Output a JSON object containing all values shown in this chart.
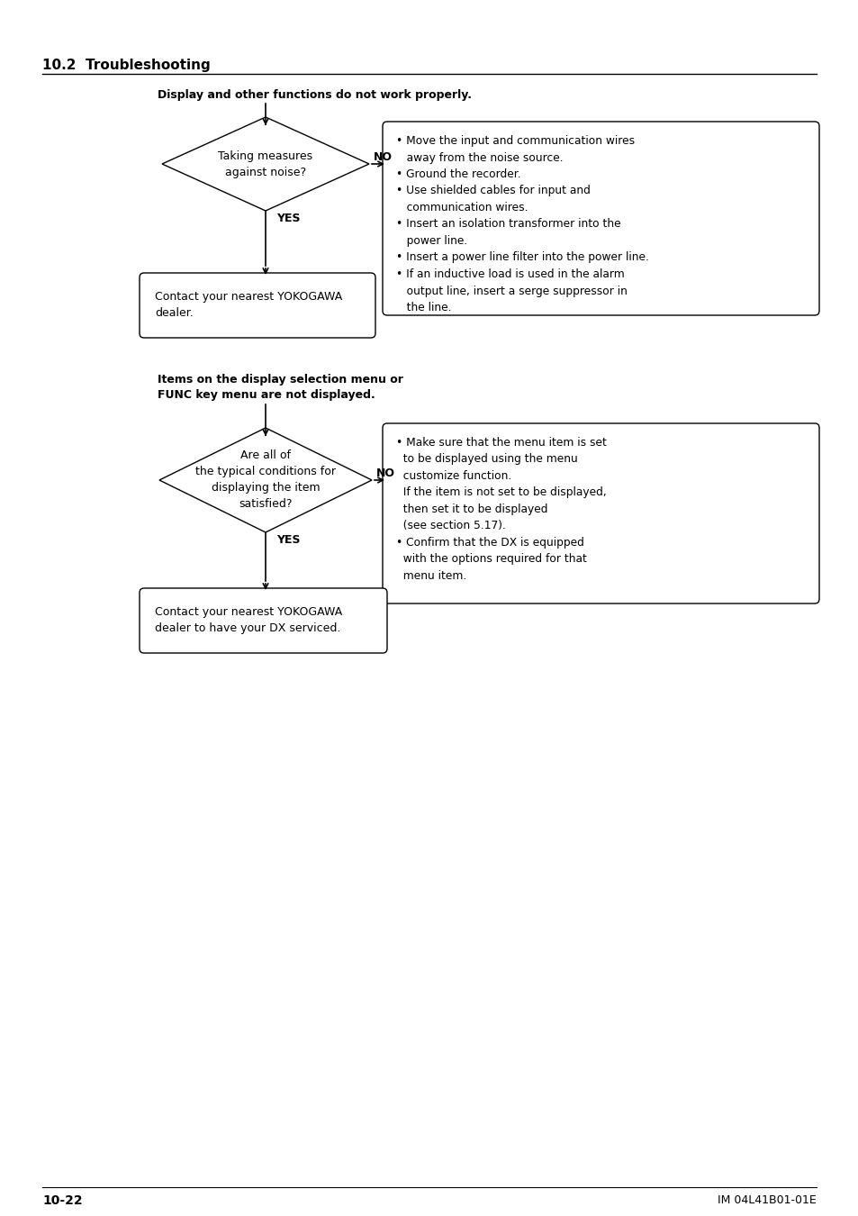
{
  "page_title": "10.2  Troubleshooting",
  "footer_left": "10-22",
  "footer_right": "IM 04L41B01-01E",
  "section1_title": "Display and other functions do not work properly.",
  "section2_title": "Items on the display selection menu or\nFUNC key menu are not displayed.",
  "diamond1_text": "Taking measures\nagainst noise?",
  "diamond1_yes": "YES",
  "diamond1_no": "NO",
  "box1_text": "Contact your nearest YOKOGAWA\ndealer.",
  "bullets1": "• Move the input and communication wires\n   away from the noise source.\n• Ground the recorder.\n• Use shielded cables for input and\n   communication wires.\n• Insert an isolation transformer into the\n   power line.\n• Insert a power line filter into the power line.\n• If an inductive load is used in the alarm\n   output line, insert a serge suppressor in\n   the line.",
  "diamond2_text": "Are all of\nthe typical conditions for\ndisplaying the item\nsatisfied?",
  "diamond2_yes": "YES",
  "diamond2_no": "NO",
  "box2_text": "Contact your nearest YOKOGAWA\ndealer to have your DX serviced.",
  "bullets2": "• Make sure that the menu item is set\n  to be displayed using the menu\n  customize function.\n  If the item is not set to be displayed,\n  then set it to be displayed\n  (see section 5.17).\n• Confirm that the DX is equipped\n  with the options required for that\n  menu item.",
  "bg_color": "#ffffff",
  "text_color": "#000000"
}
